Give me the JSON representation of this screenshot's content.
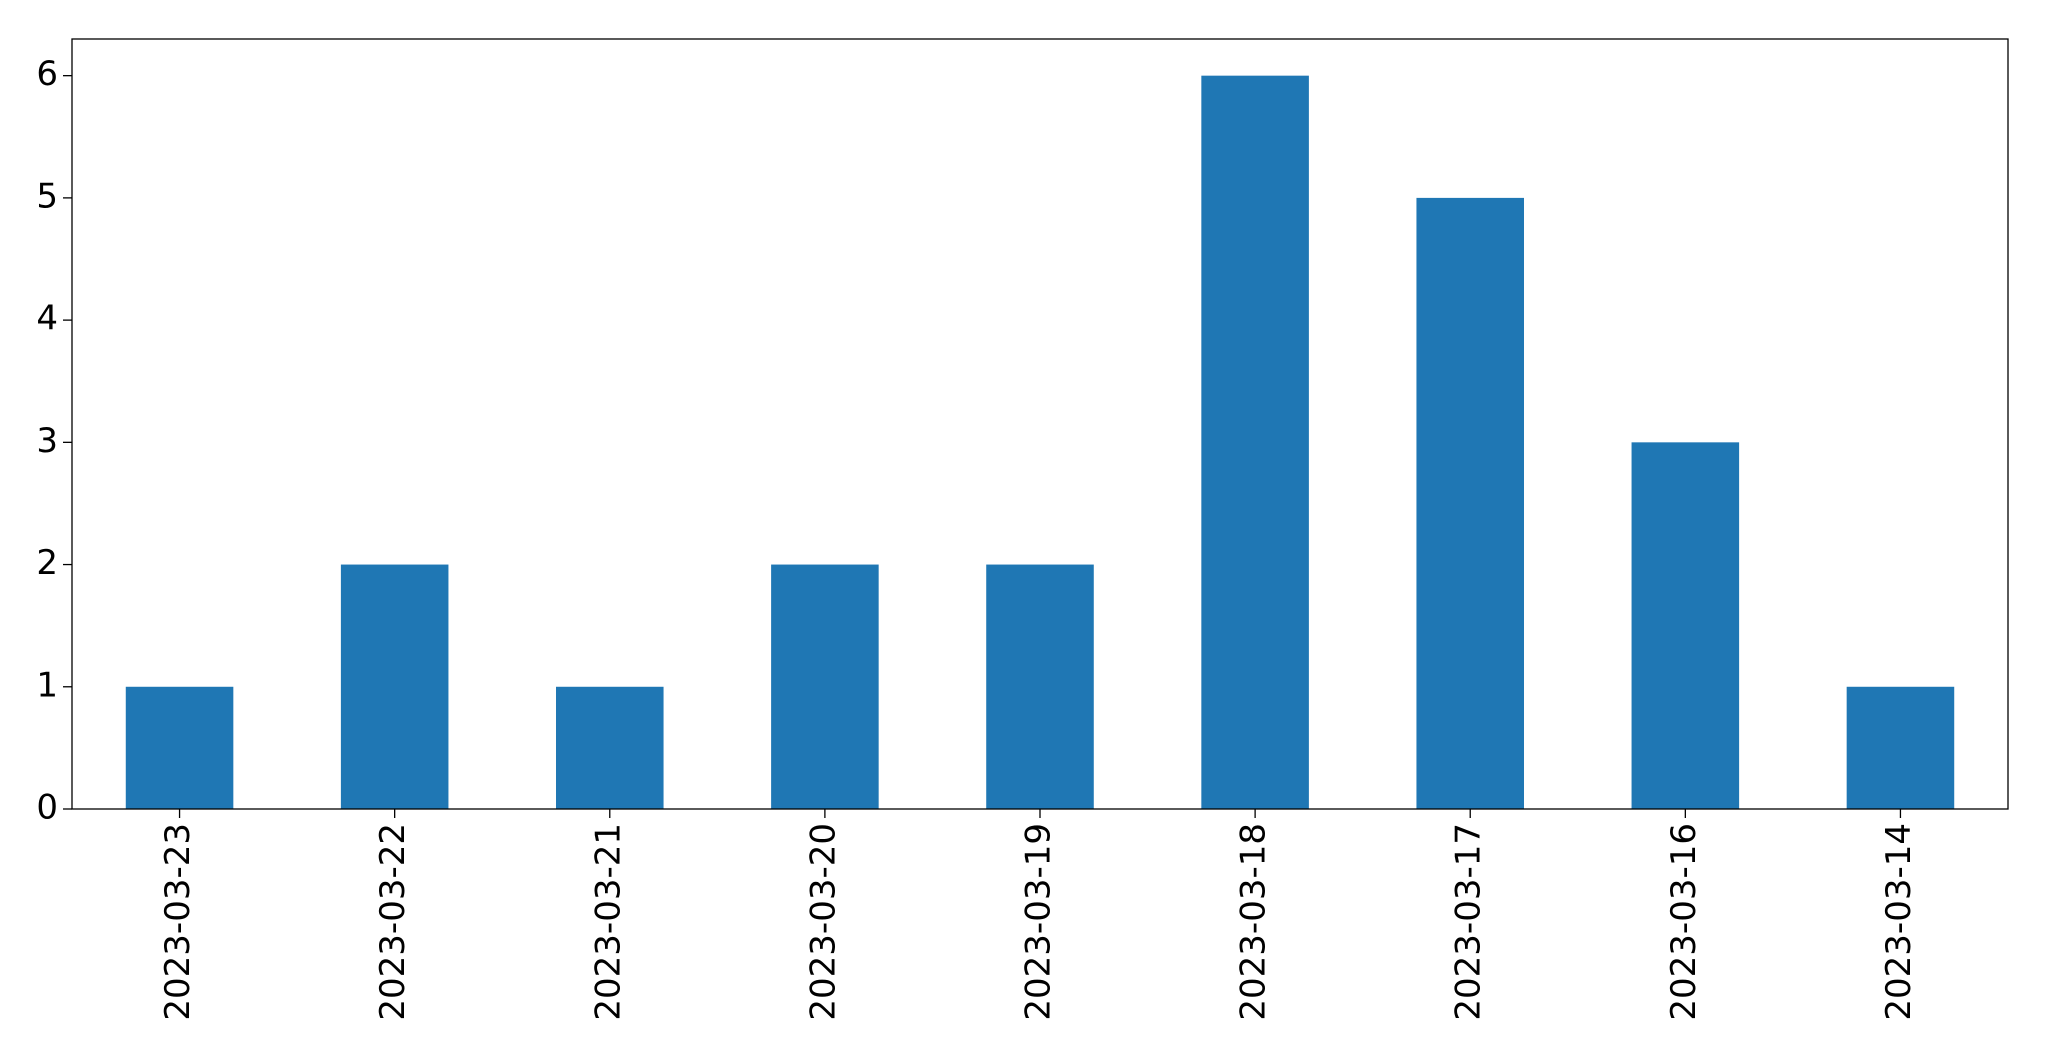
{
  "chart_data": {
    "type": "bar",
    "categories": [
      "2023-03-23",
      "2023-03-22",
      "2023-03-21",
      "2023-03-20",
      "2023-03-19",
      "2023-03-18",
      "2023-03-17",
      "2023-03-16",
      "2023-03-14"
    ],
    "values": [
      1,
      2,
      1,
      2,
      2,
      6,
      5,
      3,
      1
    ],
    "color": "#1f77b4",
    "ylim": [
      0,
      6.3
    ],
    "yticks": [
      0,
      1,
      2,
      3,
      4,
      5,
      6
    ],
    "grid": false
  }
}
